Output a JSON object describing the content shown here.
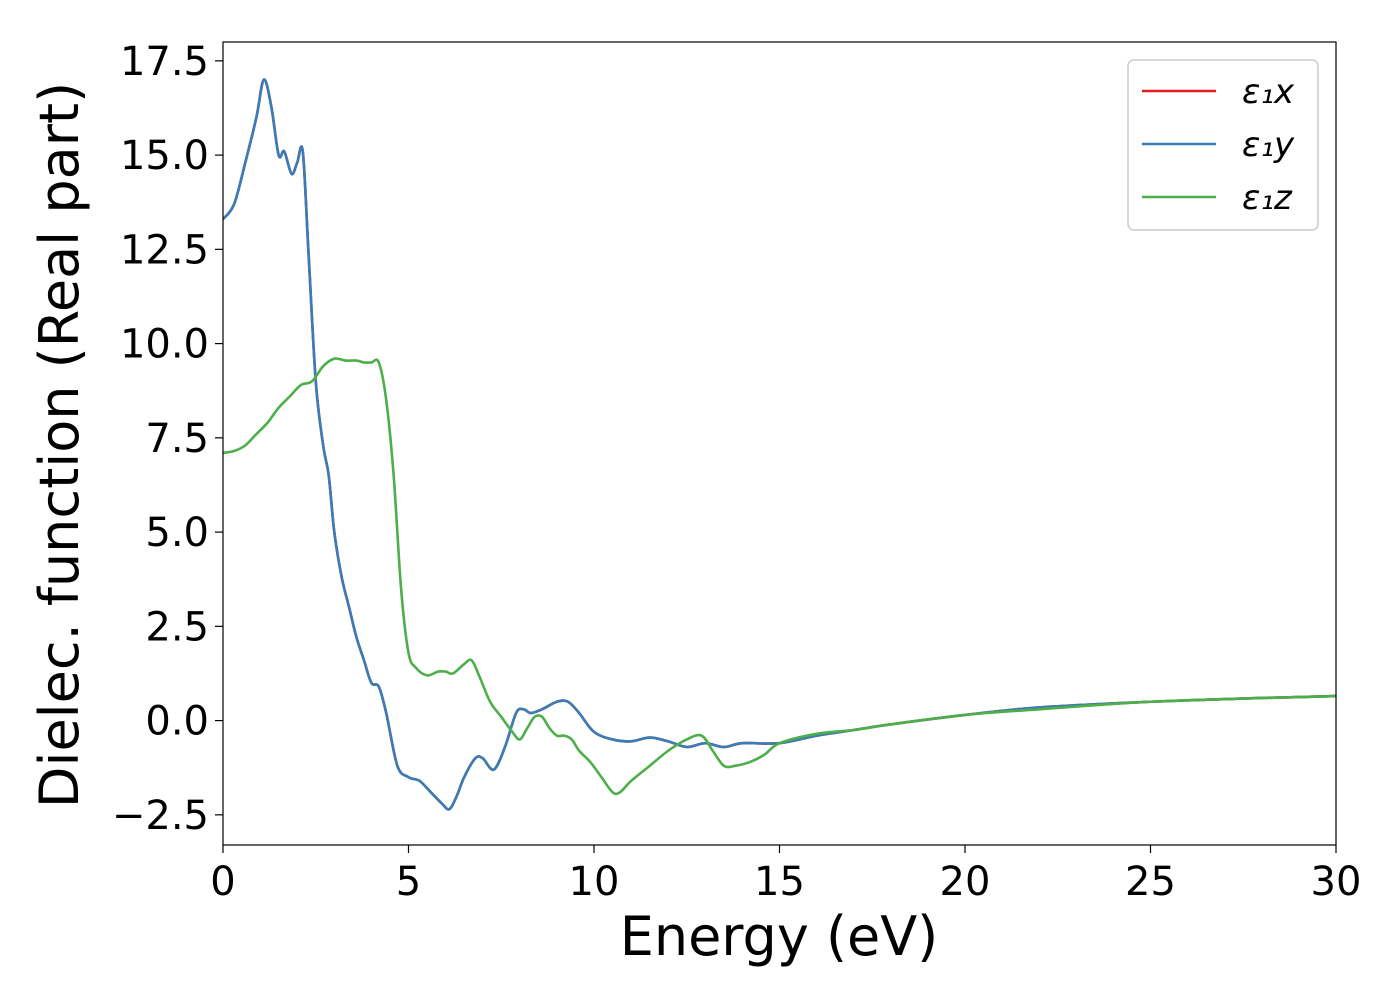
{
  "chart_data": {
    "type": "line",
    "xlabel": "Energy (eV)",
    "ylabel": "Dielec. function (Real part)",
    "xlim": [
      0,
      30
    ],
    "ylim": [
      -3.3,
      18.0
    ],
    "xticks": [
      0,
      5,
      10,
      15,
      20,
      25,
      30
    ],
    "xtick_labels": [
      "0",
      "5",
      "10",
      "15",
      "20",
      "25",
      "30"
    ],
    "yticks": [
      -2.5,
      0.0,
      2.5,
      5.0,
      7.5,
      10.0,
      12.5,
      15.0,
      17.5
    ],
    "ytick_labels": [
      "−2.5",
      "0.0",
      "2.5",
      "5.0",
      "7.5",
      "10.0",
      "12.5",
      "15.0",
      "17.5"
    ],
    "grid": false,
    "legend_position": "top-right",
    "series": [
      {
        "name": "ε₁x",
        "color": "#e41a1c",
        "x": [
          0,
          0.3,
          0.6,
          0.9,
          1.1,
          1.3,
          1.5,
          1.65,
          1.85,
          2.0,
          2.15,
          2.3,
          2.5,
          2.7,
          2.85,
          3.0,
          3.2,
          3.4,
          3.6,
          3.8,
          4.0,
          4.2,
          4.4,
          4.7,
          5.0,
          5.3,
          5.6,
          5.9,
          6.1,
          6.3,
          6.5,
          6.8,
          7.0,
          7.3,
          7.6,
          7.9,
          8.1,
          8.3,
          8.6,
          9.0,
          9.3,
          9.6,
          10.0,
          10.5,
          11.0,
          11.5,
          12.0,
          12.5,
          13.0,
          13.5,
          14.0,
          15.0,
          16.0,
          17.0,
          18.0,
          20.0,
          22.0,
          25.0,
          28.0,
          30.0
        ],
        "y": [
          13.3,
          13.7,
          14.8,
          16.0,
          17.0,
          16.3,
          15.0,
          15.1,
          14.5,
          14.8,
          15.1,
          12.5,
          9.0,
          7.3,
          6.5,
          5.0,
          3.8,
          3.0,
          2.2,
          1.6,
          1.0,
          0.9,
          0.2,
          -1.2,
          -1.5,
          -1.6,
          -1.9,
          -2.2,
          -2.35,
          -2.0,
          -1.5,
          -1.0,
          -1.0,
          -1.3,
          -0.7,
          0.2,
          0.3,
          0.2,
          0.3,
          0.5,
          0.5,
          0.2,
          -0.3,
          -0.5,
          -0.55,
          -0.45,
          -0.55,
          -0.7,
          -0.6,
          -0.7,
          -0.6,
          -0.6,
          -0.4,
          -0.25,
          -0.1,
          0.15,
          0.35,
          0.5,
          0.6,
          0.65
        ]
      },
      {
        "name": "ε₁y",
        "color": "#377eb8",
        "x": [
          0,
          0.3,
          0.6,
          0.9,
          1.1,
          1.3,
          1.5,
          1.65,
          1.85,
          2.0,
          2.15,
          2.3,
          2.5,
          2.7,
          2.85,
          3.0,
          3.2,
          3.4,
          3.6,
          3.8,
          4.0,
          4.2,
          4.4,
          4.7,
          5.0,
          5.3,
          5.6,
          5.9,
          6.1,
          6.3,
          6.5,
          6.8,
          7.0,
          7.3,
          7.6,
          7.9,
          8.1,
          8.3,
          8.6,
          9.0,
          9.3,
          9.6,
          10.0,
          10.5,
          11.0,
          11.5,
          12.0,
          12.5,
          13.0,
          13.5,
          14.0,
          15.0,
          16.0,
          17.0,
          18.0,
          20.0,
          22.0,
          25.0,
          28.0,
          30.0
        ],
        "y": [
          13.3,
          13.7,
          14.8,
          16.0,
          17.0,
          16.3,
          15.0,
          15.1,
          14.5,
          14.8,
          15.1,
          12.5,
          9.0,
          7.3,
          6.5,
          5.0,
          3.8,
          3.0,
          2.2,
          1.6,
          1.0,
          0.9,
          0.2,
          -1.2,
          -1.5,
          -1.6,
          -1.9,
          -2.2,
          -2.35,
          -2.0,
          -1.5,
          -1.0,
          -1.0,
          -1.3,
          -0.7,
          0.2,
          0.3,
          0.2,
          0.3,
          0.5,
          0.5,
          0.2,
          -0.3,
          -0.5,
          -0.55,
          -0.45,
          -0.55,
          -0.7,
          -0.6,
          -0.7,
          -0.6,
          -0.6,
          -0.4,
          -0.25,
          -0.1,
          0.15,
          0.35,
          0.5,
          0.6,
          0.65
        ]
      },
      {
        "name": "ε₁z",
        "color": "#4daf4a",
        "x": [
          0,
          0.3,
          0.6,
          0.9,
          1.2,
          1.5,
          1.8,
          2.1,
          2.4,
          2.7,
          3.0,
          3.3,
          3.6,
          3.8,
          4.0,
          4.2,
          4.4,
          4.6,
          4.8,
          5.0,
          5.2,
          5.5,
          5.8,
          6.0,
          6.2,
          6.5,
          6.7,
          6.9,
          7.2,
          7.5,
          7.8,
          8.0,
          8.2,
          8.4,
          8.6,
          8.8,
          9.0,
          9.2,
          9.4,
          9.6,
          9.9,
          10.2,
          10.5,
          10.7,
          11.0,
          11.5,
          12.0,
          12.5,
          12.9,
          13.2,
          13.5,
          13.8,
          14.2,
          14.6,
          15.0,
          16.0,
          17.0,
          18.0,
          20.0,
          22.0,
          25.0,
          28.0,
          30.0
        ],
        "y": [
          7.1,
          7.15,
          7.3,
          7.6,
          7.9,
          8.3,
          8.6,
          8.9,
          9.0,
          9.4,
          9.6,
          9.55,
          9.55,
          9.5,
          9.5,
          9.5,
          8.5,
          6.5,
          3.5,
          1.8,
          1.4,
          1.2,
          1.3,
          1.3,
          1.25,
          1.5,
          1.6,
          1.2,
          0.5,
          0.1,
          -0.3,
          -0.5,
          -0.2,
          0.1,
          0.1,
          -0.2,
          -0.4,
          -0.4,
          -0.5,
          -0.8,
          -1.1,
          -1.5,
          -1.9,
          -1.9,
          -1.6,
          -1.2,
          -0.8,
          -0.5,
          -0.4,
          -0.8,
          -1.2,
          -1.2,
          -1.1,
          -0.9,
          -0.6,
          -0.35,
          -0.25,
          -0.1,
          0.15,
          0.3,
          0.5,
          0.6,
          0.65
        ]
      }
    ]
  }
}
